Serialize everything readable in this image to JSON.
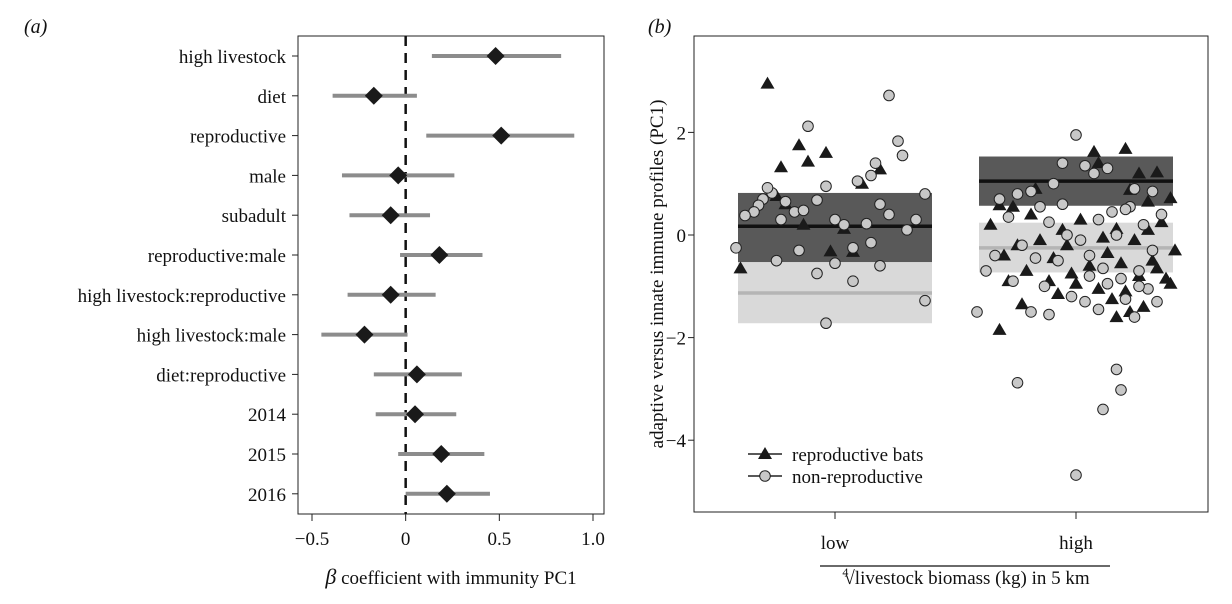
{
  "chart_data": [
    {
      "type": "forest",
      "panel_label": "(a)",
      "xlabel_symbol": "β",
      "xlabel_rest": "coefficient with immunity PC1",
      "xlim": [
        -0.5,
        1.0
      ],
      "xticks": [
        -0.5,
        0,
        0.5,
        1.0
      ],
      "xtick_labels": [
        "−0.5",
        "0",
        "0.5",
        "1.0"
      ],
      "reference_line": 0,
      "terms": [
        {
          "label": "high livestock",
          "estimate": 0.48,
          "low": 0.14,
          "high": 0.83
        },
        {
          "label": "diet",
          "estimate": -0.17,
          "low": -0.39,
          "high": 0.06
        },
        {
          "label": "reproductive",
          "estimate": 0.51,
          "low": 0.11,
          "high": 0.9
        },
        {
          "label": "male",
          "estimate": -0.04,
          "low": -0.34,
          "high": 0.26
        },
        {
          "label": "subadult",
          "estimate": -0.08,
          "low": -0.3,
          "high": 0.13
        },
        {
          "label": "reproductive:male",
          "estimate": 0.18,
          "low": -0.03,
          "high": 0.41
        },
        {
          "label": "high livestock:reproductive",
          "estimate": -0.08,
          "low": -0.31,
          "high": 0.16
        },
        {
          "label": "high livestock:male",
          "estimate": -0.22,
          "low": -0.45,
          "high": 0.01
        },
        {
          "label": "diet:reproductive",
          "estimate": 0.06,
          "low": -0.17,
          "high": 0.3
        },
        {
          "label": "2014",
          "estimate": 0.05,
          "low": -0.16,
          "high": 0.27
        },
        {
          "label": "2015",
          "estimate": 0.19,
          "low": -0.04,
          "high": 0.42
        },
        {
          "label": "2016",
          "estimate": 0.22,
          "low": 0.0,
          "high": 0.45
        }
      ]
    },
    {
      "type": "scatter",
      "panel_label": "(b)",
      "ylabel": "adaptive versus innate immune profiles (PC1)",
      "xlabel_root": "4",
      "xlabel_rest": "livestock biomass (kg) in 5 km",
      "categories": [
        "low",
        "high"
      ],
      "ylim": [
        -5.2,
        3.6
      ],
      "yticks": [
        2,
        0,
        -2,
        -4
      ],
      "ytick_labels": [
        "2",
        "0",
        "−2",
        "−4"
      ],
      "legend": {
        "position": "bottom-left",
        "entries": [
          "reproductive bats",
          "non-reproductive"
        ]
      },
      "summary": [
        {
          "group": "reproductive bats",
          "category": "low",
          "mean": 0.17,
          "lower": -0.53,
          "upper": 0.82
        },
        {
          "group": "non-reproductive",
          "category": "low",
          "mean": -1.13,
          "lower": -1.72,
          "upper": -0.53
        },
        {
          "group": "reproductive bats",
          "category": "high",
          "mean": 1.05,
          "lower": 0.57,
          "upper": 1.53
        },
        {
          "group": "non-reproductive",
          "category": "high",
          "mean": -0.25,
          "lower": -0.73,
          "upper": 0.24
        }
      ],
      "series": [
        {
          "name": "reproductive bats",
          "marker": "triangle",
          "points": [
            [
              -0.15,
              2.95
            ],
            [
              -0.13,
              0.76
            ],
            [
              -0.12,
              1.32
            ],
            [
              -0.08,
              1.75
            ],
            [
              -0.06,
              1.43
            ],
            [
              -0.02,
              1.6
            ],
            [
              0.06,
              1.0
            ],
            [
              0.1,
              1.28
            ],
            [
              -0.11,
              0.6
            ],
            [
              -0.07,
              0.2
            ],
            [
              -0.01,
              -0.32
            ],
            [
              0.04,
              -0.33
            ],
            [
              -0.21,
              -0.65
            ],
            [
              0.02,
              0.12
            ],
            [
              0.04,
              1.62
            ],
            [
              0.11,
              1.68
            ],
            [
              0.14,
              1.2
            ],
            [
              0.18,
              1.22
            ],
            [
              0.21,
              0.72
            ],
            [
              0.16,
              0.65
            ],
            [
              0.12,
              0.88
            ],
            [
              0.05,
              1.4
            ],
            [
              -0.14,
              0.55
            ],
            [
              -0.17,
              0.58
            ],
            [
              -0.1,
              0.4
            ],
            [
              -0.03,
              0.1
            ],
            [
              0.01,
              0.3
            ],
            [
              0.06,
              -0.05
            ],
            [
              0.09,
              0.12
            ],
            [
              0.13,
              -0.1
            ],
            [
              0.19,
              0.25
            ],
            [
              0.22,
              -0.3
            ],
            [
              -0.19,
              0.2
            ],
            [
              -0.13,
              -0.2
            ],
            [
              -0.08,
              -0.1
            ],
            [
              -0.05,
              -0.45
            ],
            [
              -0.02,
              -0.2
            ],
            [
              0.03,
              -0.6
            ],
            [
              0.07,
              -0.35
            ],
            [
              0.1,
              -0.55
            ],
            [
              0.14,
              -0.8
            ],
            [
              0.17,
              -0.5
            ],
            [
              0.2,
              -0.85
            ],
            [
              -0.16,
              -0.4
            ],
            [
              -0.11,
              -0.7
            ],
            [
              -0.06,
              -0.9
            ],
            [
              -0.01,
              -0.75
            ],
            [
              0.05,
              -1.05
            ],
            [
              0.08,
              -1.25
            ],
            [
              0.11,
              -1.1
            ],
            [
              0.15,
              -1.4
            ],
            [
              0.12,
              -1.5
            ],
            [
              -0.12,
              -1.35
            ],
            [
              -0.04,
              -1.15
            ],
            [
              0.0,
              -0.95
            ],
            [
              0.09,
              -1.6
            ],
            [
              -0.17,
              -1.85
            ],
            [
              0.18,
              -0.65
            ],
            [
              0.21,
              -0.95
            ],
            [
              0.16,
              0.1
            ],
            [
              -0.09,
              0.9
            ],
            [
              -0.15,
              -0.9
            ]
          ]
        },
        {
          "name": "non-reproductive",
          "marker": "circle",
          "points": [
            [
              0.12,
              2.72
            ],
            [
              -0.06,
              2.12
            ],
            [
              0.14,
              1.83
            ],
            [
              0.15,
              1.55
            ],
            [
              0.09,
              1.4
            ],
            [
              0.08,
              1.16
            ],
            [
              -0.14,
              0.82
            ],
            [
              -0.15,
              0.92
            ],
            [
              -0.16,
              0.7
            ],
            [
              -0.17,
              0.58
            ],
            [
              -0.18,
              0.45
            ],
            [
              -0.11,
              0.65
            ],
            [
              -0.09,
              0.45
            ],
            [
              -0.07,
              0.48
            ],
            [
              -0.04,
              0.68
            ],
            [
              -0.02,
              0.95
            ],
            [
              0.05,
              1.05
            ],
            [
              0.1,
              0.6
            ],
            [
              0.2,
              0.8
            ],
            [
              0.0,
              0.3
            ],
            [
              0.02,
              0.2
            ],
            [
              0.07,
              0.22
            ],
            [
              0.12,
              0.4
            ],
            [
              0.18,
              0.3
            ],
            [
              0.16,
              0.1
            ],
            [
              -0.12,
              0.3
            ],
            [
              -0.2,
              0.38
            ],
            [
              -0.13,
              -0.5
            ],
            [
              -0.08,
              -0.3
            ],
            [
              -0.22,
              -0.25
            ],
            [
              0.04,
              -0.25
            ],
            [
              0.08,
              -0.15
            ],
            [
              0.1,
              -0.6
            ],
            [
              0.04,
              -0.9
            ],
            [
              -0.04,
              -0.75
            ],
            [
              0.2,
              -1.28
            ],
            [
              0.0,
              -0.55
            ],
            [
              -0.02,
              -1.72
            ],
            [
              0.0,
              1.95
            ],
            [
              -0.03,
              1.4
            ],
            [
              0.02,
              1.35
            ],
            [
              -0.08,
              0.55
            ],
            [
              -0.13,
              0.8
            ],
            [
              -0.1,
              0.85
            ],
            [
              -0.05,
              1.0
            ],
            [
              0.04,
              1.2
            ],
            [
              0.07,
              1.3
            ],
            [
              0.13,
              0.9
            ],
            [
              0.17,
              0.85
            ],
            [
              0.12,
              0.55
            ],
            [
              0.08,
              0.45
            ],
            [
              -0.15,
              0.35
            ],
            [
              -0.06,
              0.25
            ],
            [
              -0.02,
              0.0
            ],
            [
              0.01,
              -0.1
            ],
            [
              0.05,
              0.3
            ],
            [
              0.09,
              0.0
            ],
            [
              0.15,
              0.2
            ],
            [
              0.19,
              0.4
            ],
            [
              -0.12,
              -0.2
            ],
            [
              -0.18,
              -0.4
            ],
            [
              -0.09,
              -0.45
            ],
            [
              -0.04,
              -0.5
            ],
            [
              0.03,
              -0.4
            ],
            [
              0.06,
              -0.65
            ],
            [
              0.1,
              -0.85
            ],
            [
              0.14,
              -0.7
            ],
            [
              0.17,
              -0.3
            ],
            [
              -0.2,
              -0.7
            ],
            [
              -0.14,
              -0.9
            ],
            [
              -0.07,
              -1.0
            ],
            [
              -0.01,
              -1.2
            ],
            [
              0.02,
              -1.3
            ],
            [
              0.07,
              -0.95
            ],
            [
              0.11,
              -1.25
            ],
            [
              0.16,
              -1.05
            ],
            [
              0.18,
              -1.3
            ],
            [
              -0.22,
              -1.5
            ],
            [
              -0.1,
              -1.5
            ],
            [
              -0.06,
              -1.55
            ],
            [
              0.05,
              -1.45
            ],
            [
              0.13,
              -1.6
            ],
            [
              0.09,
              -2.62
            ],
            [
              0.1,
              -3.02
            ],
            [
              -0.13,
              -2.88
            ],
            [
              0.06,
              -3.4
            ],
            [
              0.0,
              -4.68
            ],
            [
              0.14,
              -1.0
            ],
            [
              -0.17,
              0.7
            ],
            [
              0.11,
              0.5
            ],
            [
              -0.03,
              0.6
            ],
            [
              0.03,
              -0.8
            ]
          ]
        }
      ]
    }
  ]
}
